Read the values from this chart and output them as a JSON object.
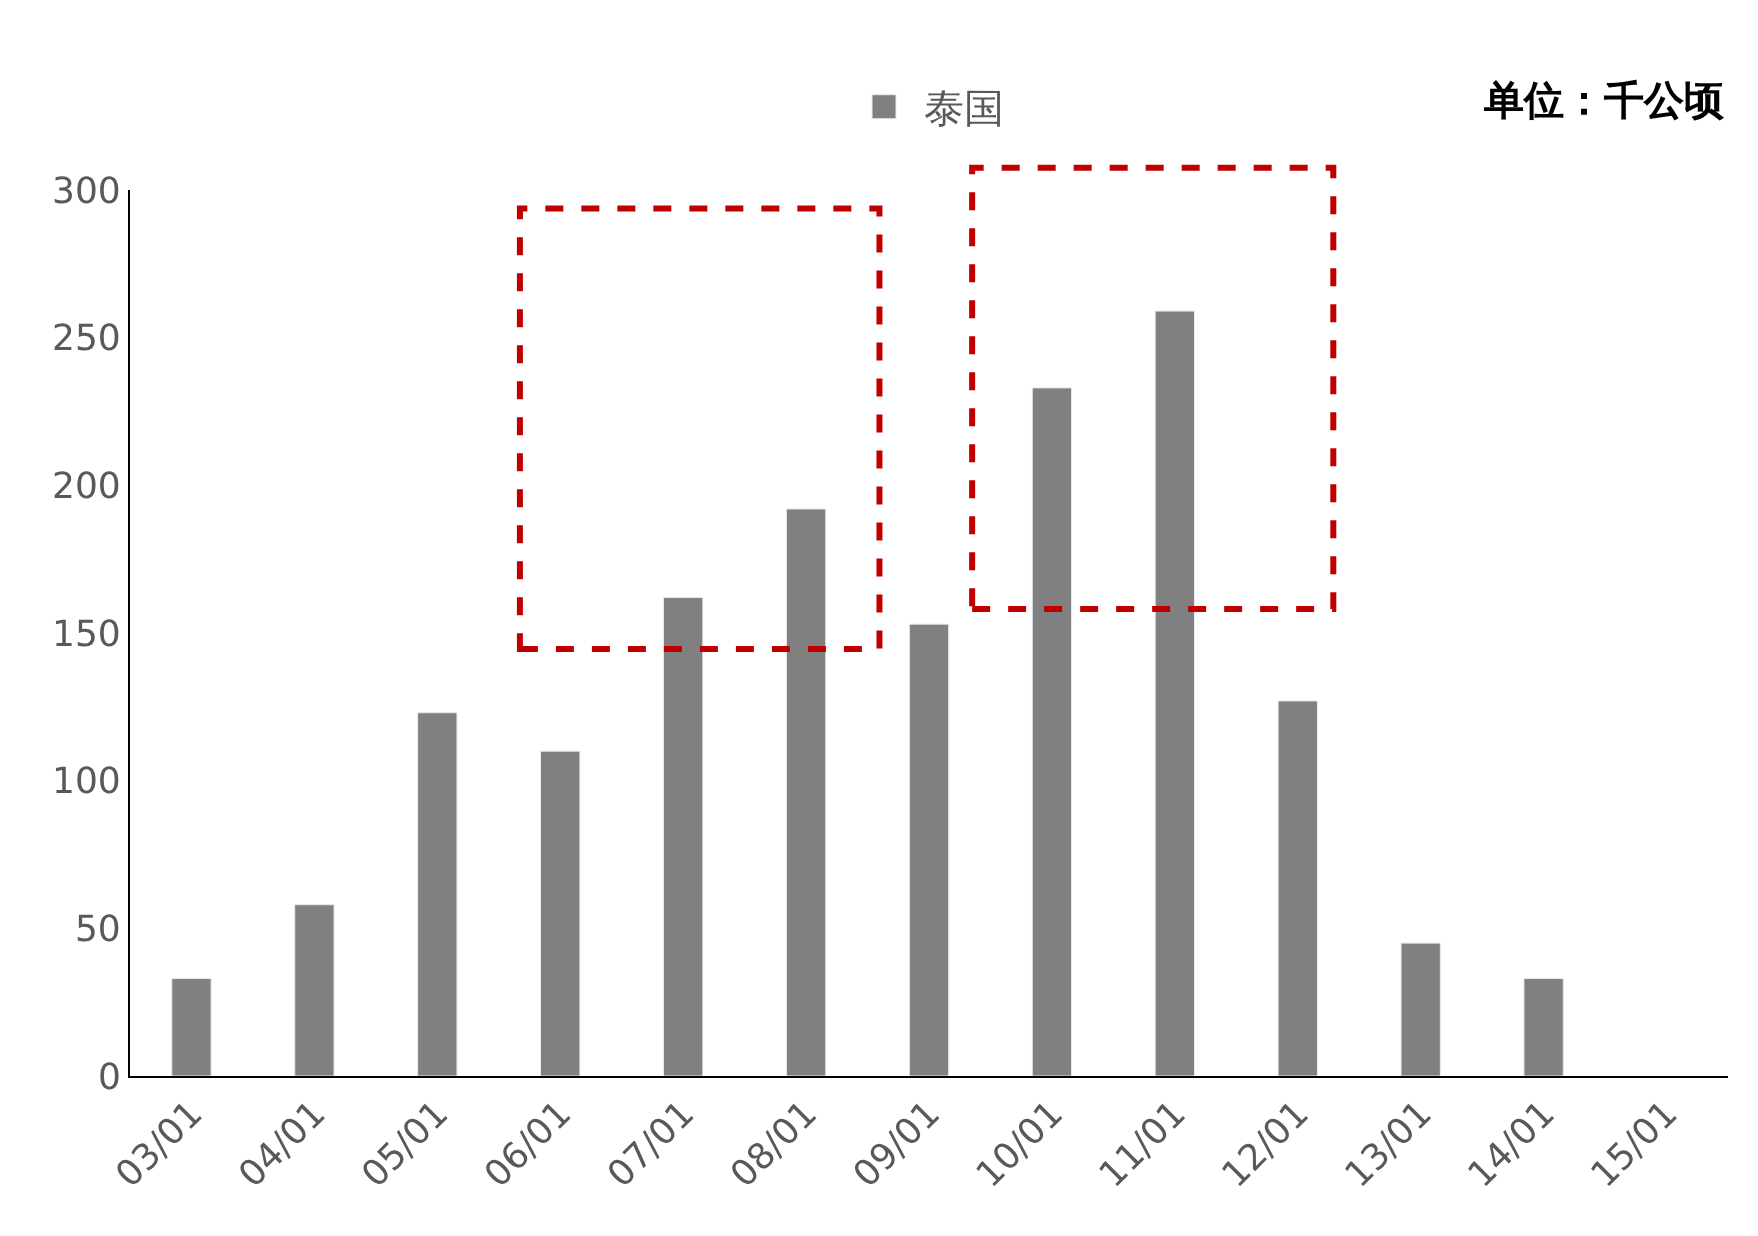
{
  "chart_data": {
    "type": "bar",
    "categories": [
      "03/01",
      "04/01",
      "05/01",
      "06/01",
      "07/01",
      "08/01",
      "09/01",
      "10/01",
      "11/01",
      "12/01",
      "13/01",
      "14/01",
      "15/01"
    ],
    "series": [
      {
        "name": "泰国",
        "color": "#808080",
        "values": [
          33,
          58,
          123,
          110,
          162,
          192,
          153,
          233,
          259,
          127,
          45,
          33,
          null
        ]
      }
    ],
    "ylim": [
      0,
      300
    ],
    "yticks": [
      0,
      50,
      100,
      150,
      200,
      250,
      300
    ],
    "grid": false,
    "legend": "top",
    "annotations": [
      "单位：千公顷"
    ]
  }
}
